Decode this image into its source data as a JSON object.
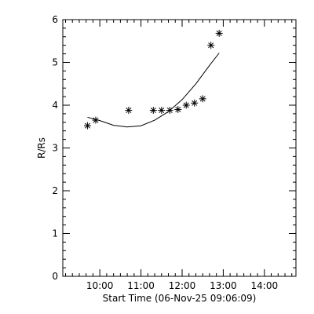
{
  "chart_data": {
    "type": "scatter",
    "title": "",
    "xlabel": "Start Time (06-Nov-25 09:06:09)",
    "ylabel": "R/Rs",
    "x_unit": "time of day",
    "xlim": [
      "09:06",
      "14:46"
    ],
    "ylim": [
      0,
      6
    ],
    "x_ticks": [
      "10:00",
      "11:00",
      "12:00",
      "13:00",
      "14:00"
    ],
    "y_ticks": [
      "0",
      "1",
      "2",
      "3",
      "4",
      "5",
      "6"
    ],
    "grid": false,
    "legend": "none",
    "series": [
      {
        "kind": "points",
        "marker": "asterisk",
        "x": [
          "09:42",
          "09:54",
          "10:42",
          "11:18",
          "11:30",
          "11:42",
          "11:54",
          "12:06",
          "12:18",
          "12:30",
          "12:42",
          "12:54"
        ],
        "y": [
          3.52,
          3.65,
          3.88,
          3.88,
          3.88,
          3.88,
          3.9,
          4.0,
          4.05,
          4.15,
          5.4,
          5.68
        ]
      },
      {
        "kind": "fit",
        "line": "solid",
        "x": [
          "09:42",
          "10:00",
          "10:20",
          "10:40",
          "11:00",
          "11:20",
          "11:40",
          "12:00",
          "12:20",
          "12:40",
          "12:54"
        ],
        "y": [
          3.72,
          3.64,
          3.53,
          3.49,
          3.52,
          3.65,
          3.85,
          4.13,
          4.5,
          4.93,
          5.22
        ]
      }
    ],
    "colors": {
      "axes": "#000000",
      "marker": "#000000",
      "line": "#000000",
      "background": "#ffffff"
    }
  }
}
